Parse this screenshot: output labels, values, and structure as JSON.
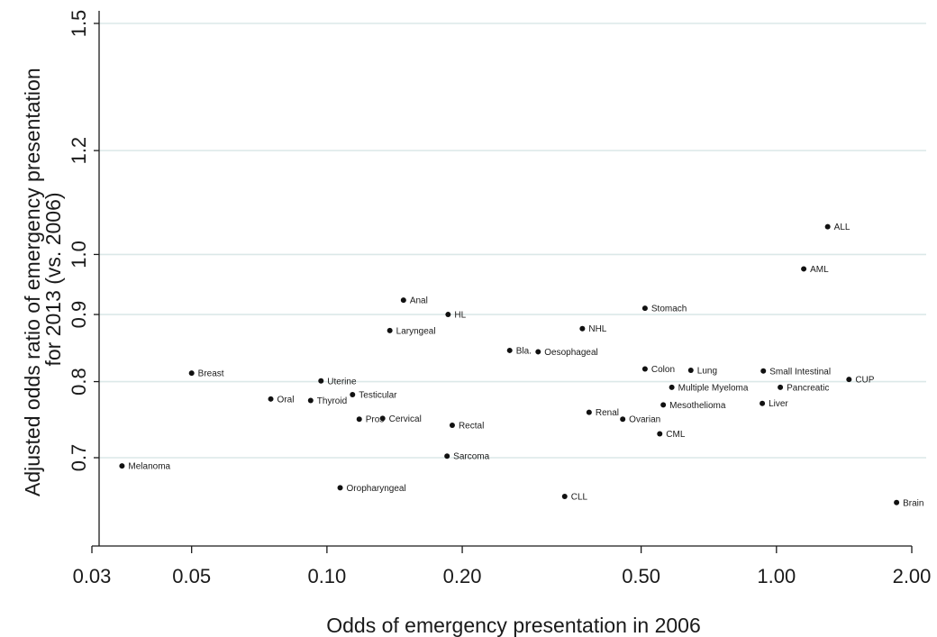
{
  "chart_data": {
    "type": "scatter",
    "xlabel": "Odds of emergency presentation in 2006",
    "ylabel_lines": [
      "Adjusted odds ratio of emergency presentation",
      "for 2013 (vs. 2006)"
    ],
    "x_scale": "log",
    "y_scale": "log",
    "xlim": [
      0.03,
      2.1
    ],
    "ylim": [
      0.615,
      1.53
    ],
    "x_ticks": [
      {
        "value": 0.03,
        "label": "0.03"
      },
      {
        "value": 0.05,
        "label": "0.05"
      },
      {
        "value": 0.1,
        "label": "0.10"
      },
      {
        "value": 0.2,
        "label": "0.20"
      },
      {
        "value": 0.5,
        "label": "0.50"
      },
      {
        "value": 1.0,
        "label": "1.00"
      },
      {
        "value": 2.0,
        "label": "2.00"
      }
    ],
    "y_ticks": [
      {
        "value": 0.7,
        "label": "0.7"
      },
      {
        "value": 0.8,
        "label": "0.8"
      },
      {
        "value": 0.9,
        "label": "0.9"
      },
      {
        "value": 1.0,
        "label": "1.0"
      },
      {
        "value": 1.2,
        "label": "1.2"
      },
      {
        "value": 1.5,
        "label": "1.5"
      }
    ],
    "gridlines": "horizontal",
    "points": [
      {
        "label": "ALL",
        "x": 1.3,
        "y": 1.05
      },
      {
        "label": "AML",
        "x": 1.15,
        "y": 0.975
      },
      {
        "label": "Stomach",
        "x": 0.51,
        "y": 0.91
      },
      {
        "label": "Anal",
        "x": 0.148,
        "y": 0.923
      },
      {
        "label": "HL",
        "x": 0.186,
        "y": 0.9
      },
      {
        "label": "NHL",
        "x": 0.37,
        "y": 0.878
      },
      {
        "label": "Laryngeal",
        "x": 0.138,
        "y": 0.875
      },
      {
        "label": "Bla.",
        "x": 0.255,
        "y": 0.845
      },
      {
        "label": "Oesophageal",
        "x": 0.295,
        "y": 0.843
      },
      {
        "label": "Breast",
        "x": 0.05,
        "y": 0.812
      },
      {
        "label": "Colon",
        "x": 0.51,
        "y": 0.818
      },
      {
        "label": "Lung",
        "x": 0.645,
        "y": 0.816
      },
      {
        "label": "Small Intestinal",
        "x": 0.935,
        "y": 0.815
      },
      {
        "label": "CUP",
        "x": 1.45,
        "y": 0.803
      },
      {
        "label": "Uterine",
        "x": 0.097,
        "y": 0.801
      },
      {
        "label": "Multiple Myeloma",
        "x": 0.585,
        "y": 0.792
      },
      {
        "label": "Pancreatic",
        "x": 1.02,
        "y": 0.792
      },
      {
        "label": "Testicular",
        "x": 0.114,
        "y": 0.782
      },
      {
        "label": "Oral",
        "x": 0.075,
        "y": 0.776
      },
      {
        "label": "Thyroid",
        "x": 0.092,
        "y": 0.774
      },
      {
        "label": "Mesothelioma",
        "x": 0.56,
        "y": 0.768
      },
      {
        "label": "Liver",
        "x": 0.93,
        "y": 0.77
      },
      {
        "label": "Renal",
        "x": 0.383,
        "y": 0.758
      },
      {
        "label": "Ovarian",
        "x": 0.455,
        "y": 0.749
      },
      {
        "label": "Pros",
        "x": 0.118,
        "y": 0.749
      },
      {
        "label": "Cervical",
        "x": 0.133,
        "y": 0.75
      },
      {
        "label": "Rectal",
        "x": 0.19,
        "y": 0.741
      },
      {
        "label": "CML",
        "x": 0.55,
        "y": 0.73
      },
      {
        "label": "Sarcoma",
        "x": 0.185,
        "y": 0.702
      },
      {
        "label": "Melanoma",
        "x": 0.035,
        "y": 0.69
      },
      {
        "label": "Oropharyngeal",
        "x": 0.107,
        "y": 0.664
      },
      {
        "label": "CLL",
        "x": 0.338,
        "y": 0.654
      },
      {
        "label": "Brain",
        "x": 1.85,
        "y": 0.647
      }
    ]
  }
}
